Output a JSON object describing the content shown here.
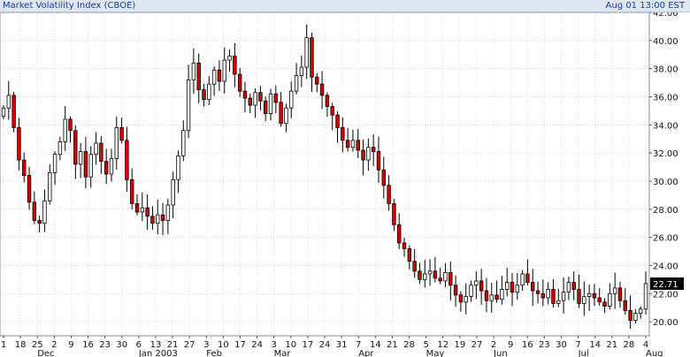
{
  "header": {
    "title": "Market Volatility Index (CBOE)",
    "timestamp": "Aug 01 13:00 EST"
  },
  "chart_data": {
    "type": "candlestick",
    "title": "Market Volatility Index (CBOE)",
    "ylim": [
      19.0,
      42.0
    ],
    "y_ticks": [
      "20.00",
      "22.00",
      "24.00",
      "26.00",
      "28.00",
      "30.00",
      "32.00",
      "34.00",
      "36.00",
      "38.00",
      "40.00",
      "42.00"
    ],
    "y_tick_values": [
      20,
      22,
      24,
      26,
      28,
      30,
      32,
      34,
      36,
      38,
      40,
      42
    ],
    "x_day_labels": [
      "1",
      "18",
      "25",
      "2",
      "9",
      "16",
      "23",
      "30",
      "6",
      "13",
      "21",
      "27",
      "3",
      "10",
      "17",
      "24",
      "3",
      "10",
      "17",
      "24",
      "31",
      "7",
      "14",
      "21",
      "28",
      "5",
      "12",
      "19",
      "27",
      "2",
      "9",
      "16",
      "23",
      "30",
      "7",
      "14",
      "21",
      "28",
      "4"
    ],
    "x_month_labels": [
      {
        "label": "Dec",
        "index": 2
      },
      {
        "label": "Jan 2003",
        "index": 8
      },
      {
        "label": "Feb",
        "index": 12
      },
      {
        "label": "Mar",
        "index": 16
      },
      {
        "label": "Apr",
        "index": 21
      },
      {
        "label": "May",
        "index": 25
      },
      {
        "label": "Jun",
        "index": 29
      },
      {
        "label": "Jul",
        "index": 34
      },
      {
        "label": "Aug",
        "index": 38
      }
    ],
    "last_value": "22.71",
    "up_color": "#ffffff",
    "down_color": "#d40000",
    "grid": true,
    "axis_side": "right",
    "closes": [
      35.2,
      36.1,
      33.8,
      31.5,
      30.4,
      28.5,
      27.2,
      27.0,
      28.6,
      30.6,
      31.9,
      32.8,
      34.4,
      33.6,
      31.2,
      32.1,
      30.3,
      31.9,
      32.7,
      31.4,
      30.5,
      31.6,
      33.8,
      32.9,
      30.1,
      28.4,
      27.8,
      28.1,
      27.5,
      27.0,
      27.6,
      27.2,
      28.3,
      30.1,
      31.8,
      33.6,
      37.2,
      38.4,
      36.5,
      35.8,
      36.9,
      37.9,
      37.1,
      38.6,
      38.9,
      37.6,
      36.4,
      35.9,
      35.4,
      36.3,
      35.7,
      34.8,
      36.2,
      35.6,
      34.1,
      35.2,
      36.4,
      37.5,
      38.1,
      40.2,
      37.4,
      36.9,
      36.1,
      35.3,
      34.7,
      33.8,
      32.9,
      32.4,
      32.9,
      32.2,
      31.5,
      32.4,
      32.1,
      30.8,
      29.7,
      28.4,
      26.9,
      25.6,
      25.2,
      24.3,
      23.6,
      23.0,
      23.4,
      23.6,
      23.1,
      22.9,
      23.5,
      22.6,
      21.9,
      21.4,
      21.8,
      22.6,
      22.9,
      22.2,
      21.5,
      21.9,
      21.6,
      22.3,
      22.8,
      22.1,
      22.6,
      23.4,
      22.8,
      22.2,
      22.0,
      21.7,
      22.3,
      21.3,
      21.5,
      22.1,
      22.8,
      22.3,
      21.3,
      21.8,
      22.0,
      21.7,
      21.4,
      21.1,
      22.0,
      22.4,
      21.5,
      20.8,
      20.1,
      20.6,
      20.9,
      22.71
    ]
  }
}
